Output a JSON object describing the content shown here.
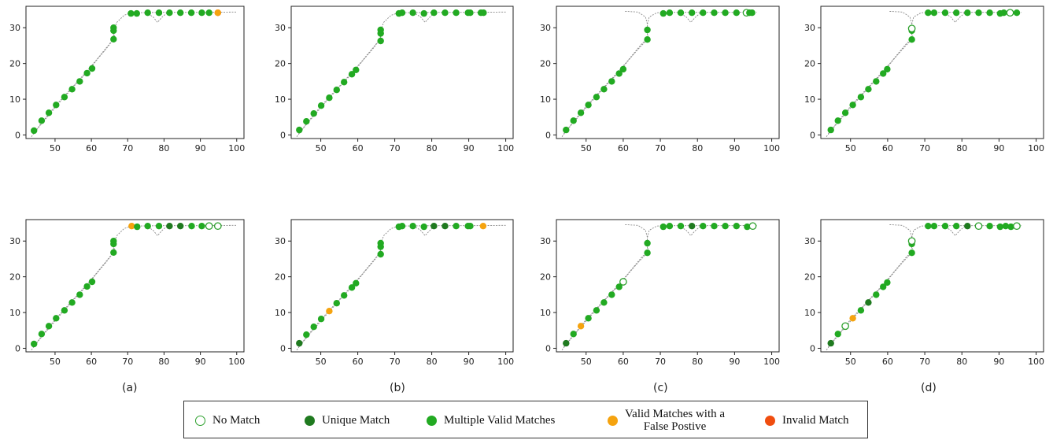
{
  "colors": {
    "no_match": "#2ca02c",
    "unique": "#1f7a1f",
    "multi": "#22aa22",
    "fp": "#f5a30f",
    "invalid": "#f04d0f",
    "road": "#8a8a8a"
  },
  "captions": [
    "(a)",
    "(b)",
    "(c)",
    "(d)"
  ],
  "legend": [
    {
      "key": "none",
      "label": "No Match"
    },
    {
      "key": "unique",
      "label": "Unique Match"
    },
    {
      "key": "multi",
      "label": "Multiple Valid Matches"
    },
    {
      "key": "fp",
      "label": "Valid Matches with a",
      "label2": "False Postive"
    },
    {
      "key": "invalid",
      "label": "Invalid Match"
    }
  ],
  "chart_data": [
    {
      "id": "top-a",
      "type": "scatter",
      "xlim": [
        42,
        102
      ],
      "ylim": [
        -1,
        36
      ],
      "xticks": [
        50,
        60,
        70,
        80,
        90,
        100
      ],
      "yticks": [
        0,
        10,
        20,
        30
      ],
      "road": "left",
      "points": [
        [
          44.2,
          1.2,
          "multi"
        ],
        [
          46.3,
          4,
          "multi"
        ],
        [
          48.3,
          6.2,
          "multi"
        ],
        [
          50.3,
          8.4,
          "multi"
        ],
        [
          52.6,
          10.6,
          "multi"
        ],
        [
          54.7,
          12.8,
          "multi"
        ],
        [
          56.8,
          15,
          "multi"
        ],
        [
          58.8,
          17.3,
          "multi"
        ],
        [
          60.2,
          18.6,
          "multi"
        ],
        [
          66.1,
          26.8,
          "multi"
        ],
        [
          66.1,
          29.2,
          "multi"
        ],
        [
          66.1,
          30,
          "multi"
        ],
        [
          70.9,
          34,
          "multi"
        ],
        [
          72.5,
          34,
          "multi"
        ],
        [
          75.5,
          34.2,
          "multi"
        ],
        [
          78.6,
          34.2,
          "multi"
        ],
        [
          81.5,
          34.2,
          "multi"
        ],
        [
          84.5,
          34.2,
          "multi"
        ],
        [
          87.5,
          34.2,
          "multi"
        ],
        [
          90.4,
          34.2,
          "multi"
        ],
        [
          92.4,
          34.2,
          "multi"
        ],
        [
          94.8,
          34.2,
          "invalid"
        ],
        [
          94.8,
          34.2,
          "fp"
        ]
      ]
    },
    {
      "id": "top-b",
      "type": "scatter",
      "xlim": [
        42,
        102
      ],
      "ylim": [
        -1,
        36
      ],
      "xticks": [
        50,
        60,
        70,
        80,
        90,
        100
      ],
      "yticks": [
        0,
        10,
        20,
        30
      ],
      "road": "left",
      "points": [
        [
          44.2,
          1.4,
          "multi"
        ],
        [
          46.1,
          3.8,
          "multi"
        ],
        [
          48.1,
          6,
          "multi"
        ],
        [
          50.1,
          8.2,
          "multi"
        ],
        [
          52.3,
          10.4,
          "multi"
        ],
        [
          54.3,
          12.6,
          "multi"
        ],
        [
          56.3,
          14.8,
          "multi"
        ],
        [
          58.4,
          17,
          "multi"
        ],
        [
          59.5,
          18.2,
          "multi"
        ],
        [
          66.2,
          26.3,
          "multi"
        ],
        [
          66.2,
          28.4,
          "multi"
        ],
        [
          66.2,
          29.4,
          "multi"
        ],
        [
          71.1,
          34,
          "multi"
        ],
        [
          72,
          34.2,
          "multi"
        ],
        [
          74.9,
          34.2,
          "multi"
        ],
        [
          77.9,
          34,
          "multi"
        ],
        [
          80.6,
          34.2,
          "multi"
        ],
        [
          83.6,
          34.2,
          "multi"
        ],
        [
          86.6,
          34.2,
          "multi"
        ],
        [
          89.8,
          34.2,
          "multi"
        ],
        [
          90.4,
          34.2,
          "multi"
        ],
        [
          93.3,
          34.2,
          "multi"
        ],
        [
          94,
          34.2,
          "multi"
        ]
      ]
    },
    {
      "id": "top-c",
      "type": "scatter",
      "xlim": [
        42,
        102
      ],
      "ylim": [
        -1,
        36
      ],
      "xticks": [
        50,
        60,
        70,
        80,
        90,
        100
      ],
      "yticks": [
        0,
        10,
        20,
        30
      ],
      "road": "right",
      "points": [
        [
          44.6,
          1.4,
          "multi"
        ],
        [
          46.6,
          4,
          "multi"
        ],
        [
          48.6,
          6.2,
          "multi"
        ],
        [
          50.6,
          8.4,
          "multi"
        ],
        [
          52.8,
          10.6,
          "multi"
        ],
        [
          54.8,
          12.8,
          "multi"
        ],
        [
          56.9,
          15,
          "multi"
        ],
        [
          58.9,
          17.2,
          "multi"
        ],
        [
          60,
          18.4,
          "multi"
        ],
        [
          66.5,
          26.7,
          "multi"
        ],
        [
          66.5,
          29.4,
          "multi"
        ],
        [
          70.8,
          34,
          "multi"
        ],
        [
          72.5,
          34.2,
          "multi"
        ],
        [
          75.5,
          34.2,
          "multi"
        ],
        [
          78.5,
          34.2,
          "multi"
        ],
        [
          81.5,
          34.2,
          "multi"
        ],
        [
          84.5,
          34.2,
          "multi"
        ],
        [
          87.5,
          34.2,
          "multi"
        ],
        [
          90.5,
          34.2,
          "multi"
        ],
        [
          93.2,
          34.2,
          "none"
        ],
        [
          94,
          34.2,
          "multi"
        ],
        [
          94.7,
          34.2,
          "multi"
        ]
      ]
    },
    {
      "id": "top-d",
      "type": "scatter",
      "xlim": [
        42,
        102
      ],
      "ylim": [
        -1,
        36
      ],
      "xticks": [
        50,
        60,
        70,
        80,
        90,
        100
      ],
      "yticks": [
        0,
        10,
        20,
        30
      ],
      "road": "right",
      "points": [
        [
          44.7,
          1.4,
          "multi"
        ],
        [
          46.6,
          4,
          "multi"
        ],
        [
          48.6,
          6.2,
          "multi"
        ],
        [
          50.6,
          8.4,
          "multi"
        ],
        [
          52.8,
          10.6,
          "multi"
        ],
        [
          54.8,
          12.8,
          "multi"
        ],
        [
          56.9,
          15,
          "multi"
        ],
        [
          58.8,
          17.2,
          "multi"
        ],
        [
          59.9,
          18.4,
          "multi"
        ],
        [
          66.5,
          26.7,
          "multi"
        ],
        [
          66.5,
          29.2,
          "multi"
        ],
        [
          66.5,
          29.8,
          "none"
        ],
        [
          70.9,
          34.2,
          "multi"
        ],
        [
          72.5,
          34.2,
          "multi"
        ],
        [
          75.5,
          34.2,
          "multi"
        ],
        [
          78.5,
          34.2,
          "multi"
        ],
        [
          81.5,
          34.2,
          "multi"
        ],
        [
          84.5,
          34.2,
          "multi"
        ],
        [
          87.5,
          34.2,
          "multi"
        ],
        [
          90.3,
          34,
          "multi"
        ],
        [
          91.3,
          34.2,
          "multi"
        ],
        [
          93,
          34.2,
          "none"
        ],
        [
          94.8,
          34.2,
          "multi"
        ]
      ]
    },
    {
      "id": "bot-a",
      "type": "scatter",
      "xlim": [
        42,
        102
      ],
      "ylim": [
        -1,
        36
      ],
      "xticks": [
        50,
        60,
        70,
        80,
        90,
        100
      ],
      "yticks": [
        0,
        10,
        20,
        30
      ],
      "road": "left",
      "points": [
        [
          44.2,
          1.2,
          "multi"
        ],
        [
          46.3,
          4,
          "multi"
        ],
        [
          48.3,
          6.2,
          "multi"
        ],
        [
          50.3,
          8.4,
          "multi"
        ],
        [
          52.6,
          10.6,
          "multi"
        ],
        [
          54.7,
          12.8,
          "multi"
        ],
        [
          56.8,
          15,
          "multi"
        ],
        [
          58.8,
          17.3,
          "multi"
        ],
        [
          60.2,
          18.6,
          "multi"
        ],
        [
          66.1,
          26.8,
          "multi"
        ],
        [
          66.1,
          29.2,
          "multi"
        ],
        [
          66.1,
          30,
          "multi"
        ],
        [
          71.1,
          34.2,
          "fp"
        ],
        [
          72.6,
          34,
          "multi"
        ],
        [
          75.5,
          34.2,
          "multi"
        ],
        [
          78.6,
          34.2,
          "multi"
        ],
        [
          81.5,
          34.2,
          "unique"
        ],
        [
          84.5,
          34.2,
          "unique"
        ],
        [
          87.6,
          34.2,
          "multi"
        ],
        [
          90.4,
          34.2,
          "multi"
        ],
        [
          92.4,
          34.2,
          "none"
        ],
        [
          94.8,
          34.2,
          "none"
        ]
      ]
    },
    {
      "id": "bot-b",
      "type": "scatter",
      "xlim": [
        42,
        102
      ],
      "ylim": [
        -1,
        36
      ],
      "xticks": [
        50,
        60,
        70,
        80,
        90,
        100
      ],
      "yticks": [
        0,
        10,
        20,
        30
      ],
      "road": "left",
      "points": [
        [
          44.2,
          1.4,
          "unique"
        ],
        [
          46.1,
          3.8,
          "multi"
        ],
        [
          48.1,
          6,
          "multi"
        ],
        [
          50.1,
          8.2,
          "multi"
        ],
        [
          52.3,
          10.4,
          "fp"
        ],
        [
          54.3,
          12.6,
          "multi"
        ],
        [
          56.3,
          14.8,
          "multi"
        ],
        [
          58.4,
          17,
          "multi"
        ],
        [
          59.5,
          18.2,
          "multi"
        ],
        [
          66.2,
          26.3,
          "multi"
        ],
        [
          66.2,
          28.4,
          "multi"
        ],
        [
          66.2,
          29.4,
          "multi"
        ],
        [
          71.1,
          34,
          "multi"
        ],
        [
          72,
          34.2,
          "multi"
        ],
        [
          74.9,
          34.2,
          "multi"
        ],
        [
          77.9,
          34,
          "multi"
        ],
        [
          80.6,
          34.2,
          "unique"
        ],
        [
          83.6,
          34.2,
          "unique"
        ],
        [
          86.6,
          34.2,
          "multi"
        ],
        [
          89.8,
          34.2,
          "multi"
        ],
        [
          90.4,
          34.2,
          "multi"
        ],
        [
          93.9,
          34.2,
          "fp"
        ]
      ]
    },
    {
      "id": "bot-c",
      "type": "scatter",
      "xlim": [
        42,
        102
      ],
      "ylim": [
        -1,
        36
      ],
      "xticks": [
        50,
        60,
        70,
        80,
        90,
        100
      ],
      "yticks": [
        0,
        10,
        20,
        30
      ],
      "road": "right",
      "points": [
        [
          44.6,
          1.4,
          "unique"
        ],
        [
          46.6,
          4,
          "multi"
        ],
        [
          48.6,
          6.2,
          "fp"
        ],
        [
          50.6,
          8.4,
          "multi"
        ],
        [
          52.8,
          10.6,
          "multi"
        ],
        [
          54.8,
          12.8,
          "multi"
        ],
        [
          56.9,
          15,
          "multi"
        ],
        [
          58.9,
          17.2,
          "multi"
        ],
        [
          60,
          18.6,
          "none"
        ],
        [
          66.5,
          26.7,
          "multi"
        ],
        [
          66.5,
          29.4,
          "multi"
        ],
        [
          70.8,
          34,
          "multi"
        ],
        [
          72.5,
          34.2,
          "multi"
        ],
        [
          75.5,
          34.2,
          "multi"
        ],
        [
          78.5,
          34.2,
          "unique"
        ],
        [
          81.5,
          34.2,
          "multi"
        ],
        [
          84.5,
          34.2,
          "multi"
        ],
        [
          87.5,
          34.2,
          "multi"
        ],
        [
          90.5,
          34.2,
          "multi"
        ],
        [
          93.4,
          34,
          "multi"
        ],
        [
          94.9,
          34.2,
          "none"
        ]
      ]
    },
    {
      "id": "bot-d",
      "type": "scatter",
      "xlim": [
        42,
        102
      ],
      "ylim": [
        -1,
        36
      ],
      "xticks": [
        50,
        60,
        70,
        80,
        90,
        100
      ],
      "yticks": [
        0,
        10,
        20,
        30
      ],
      "road": "right",
      "points": [
        [
          44.7,
          1.4,
          "unique"
        ],
        [
          46.6,
          4,
          "multi"
        ],
        [
          48.6,
          6.2,
          "none"
        ],
        [
          50.6,
          8.4,
          "fp"
        ],
        [
          52.8,
          10.6,
          "multi"
        ],
        [
          54.8,
          12.8,
          "unique"
        ],
        [
          56.9,
          15,
          "multi"
        ],
        [
          58.8,
          17.2,
          "multi"
        ],
        [
          59.9,
          18.4,
          "multi"
        ],
        [
          66.5,
          26.7,
          "multi"
        ],
        [
          66.5,
          29.2,
          "multi"
        ],
        [
          66.5,
          30,
          "none"
        ],
        [
          70.9,
          34.2,
          "multi"
        ],
        [
          72.5,
          34.2,
          "multi"
        ],
        [
          75.5,
          34.2,
          "multi"
        ],
        [
          78.5,
          34.2,
          "multi"
        ],
        [
          81.5,
          34.2,
          "unique"
        ],
        [
          84.5,
          34.2,
          "none"
        ],
        [
          87.5,
          34.2,
          "multi"
        ],
        [
          90.3,
          34,
          "multi"
        ],
        [
          91.8,
          34.2,
          "multi"
        ],
        [
          93.2,
          34,
          "multi"
        ],
        [
          94.8,
          34.2,
          "none"
        ]
      ]
    }
  ]
}
